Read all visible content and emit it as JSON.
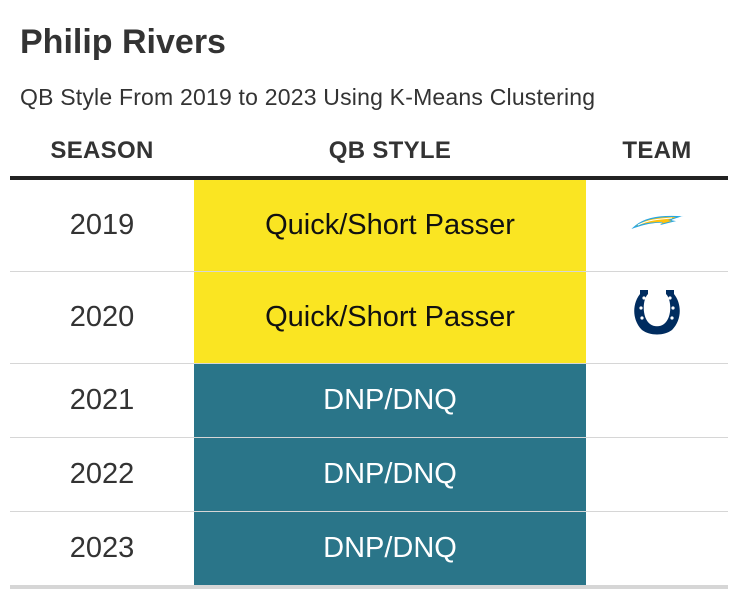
{
  "header": {
    "title": "Philip Rivers",
    "subtitle": "QB Style From 2019 to 2023 Using K-Means Clustering"
  },
  "table": {
    "columns": {
      "season": "SEASON",
      "style": "QB STYLE",
      "team": "TEAM"
    },
    "rows": [
      {
        "season": "2019",
        "style": "Quick/Short Passer",
        "team_logo": "chargers-bolt-icon"
      },
      {
        "season": "2020",
        "style": "Quick/Short Passer",
        "team_logo": "colts-horseshoe-icon"
      },
      {
        "season": "2021",
        "style": "DNP/DNQ"
      },
      {
        "season": "2022",
        "style": "DNP/DNQ"
      },
      {
        "season": "2023",
        "style": "DNP/DNQ"
      }
    ]
  },
  "colors": {
    "quick_short_passer": "#fae522",
    "dnp_dnq": "#2a7589",
    "chargers_powder_blue": "#2aa7e0",
    "chargers_gold": "#ffc20e",
    "colts_blue": "#002c5f"
  }
}
